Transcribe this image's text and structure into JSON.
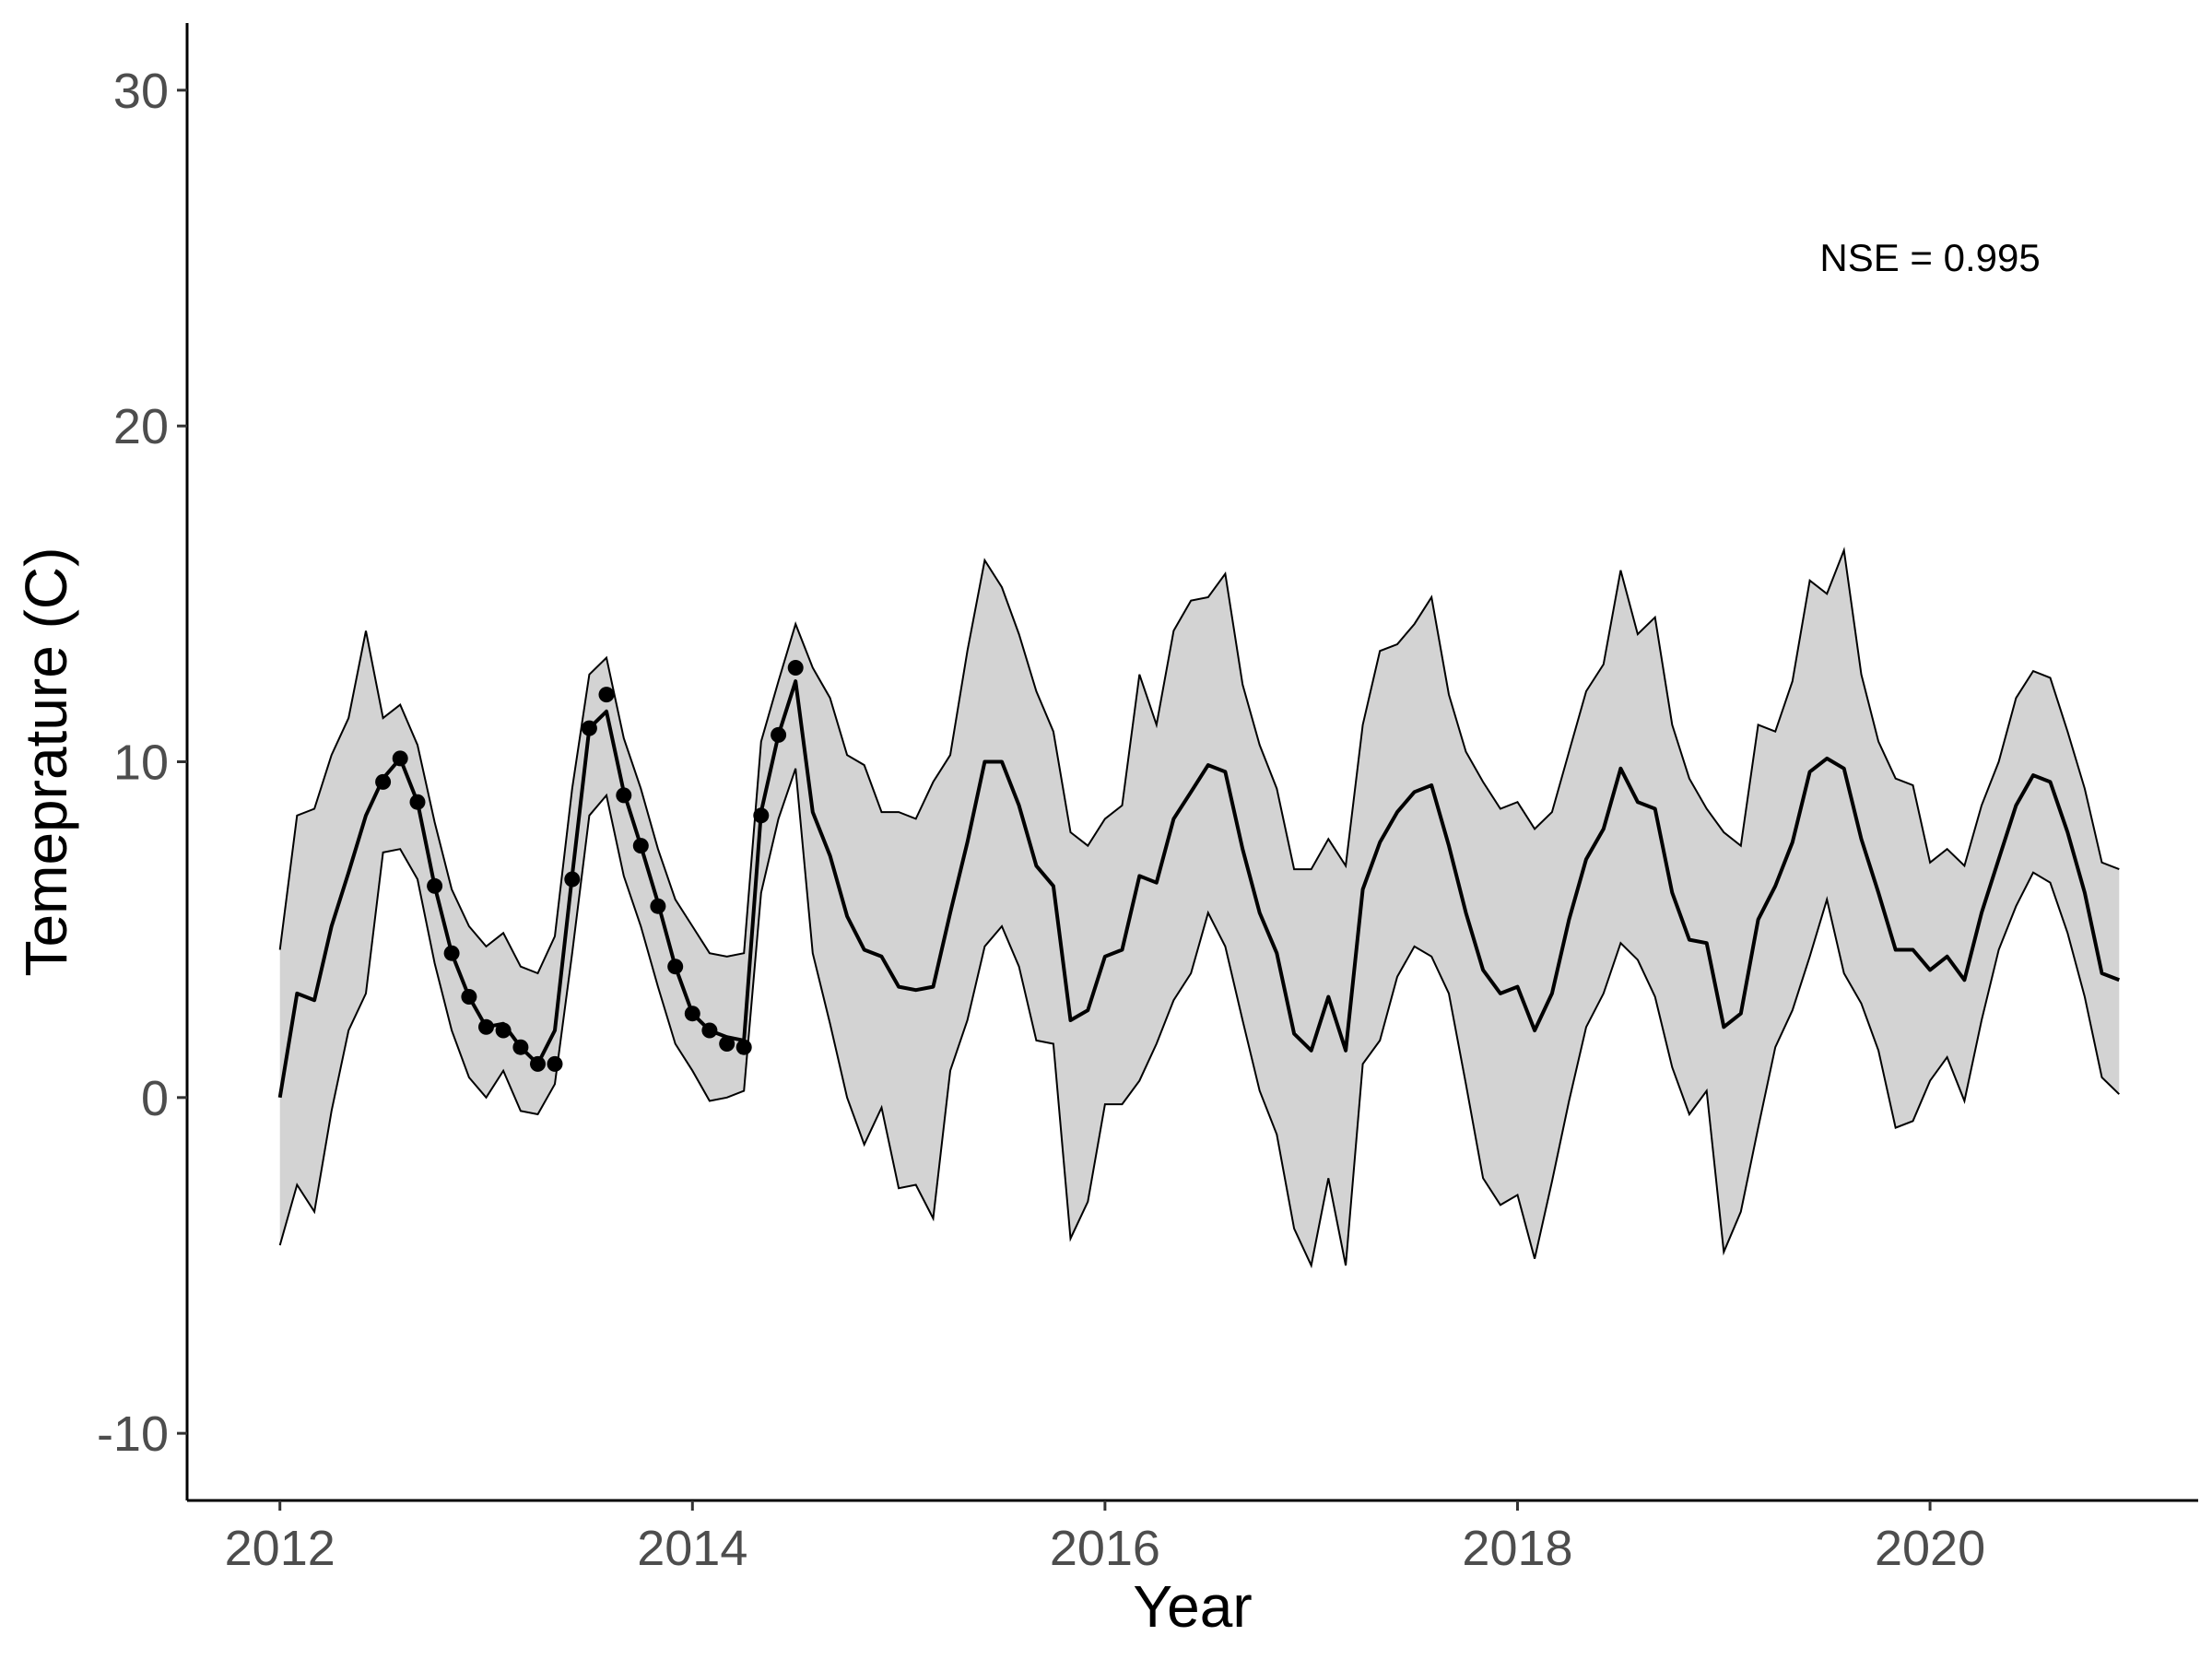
{
  "chart_data": {
    "type": "line",
    "title": "",
    "xlabel": "Year",
    "ylabel": "Temeprature (C)",
    "xlim": [
      2011.55,
      2021.3
    ],
    "ylim": [
      -12,
      32
    ],
    "x_ticks": [
      2012,
      2014,
      2016,
      2018,
      2020
    ],
    "x_tick_labels": [
      "2012",
      "2014",
      "2016",
      "2018",
      "2020"
    ],
    "y_ticks": [
      -10,
      0,
      10,
      20,
      30
    ],
    "y_tick_labels": [
      "-10",
      "0",
      "10",
      "20",
      "30"
    ],
    "grid": false,
    "legend": "none",
    "annotation": {
      "text": "NSE = 0.995",
      "x": 2020.0,
      "y": 25.0
    },
    "colors": {
      "band": "#d3d3d3",
      "line": "#000000",
      "points": "#000000",
      "axis": "#000000"
    },
    "series": [
      {
        "kind": "ribbon",
        "x": [
          2012.0,
          2012.083,
          2012.167,
          2012.25,
          2012.333,
          2012.417,
          2012.5,
          2012.583,
          2012.667,
          2012.75,
          2012.833,
          2012.917,
          2013.0,
          2013.083,
          2013.167,
          2013.25,
          2013.333,
          2013.417,
          2013.5,
          2013.583,
          2013.667,
          2013.75,
          2013.833,
          2013.917,
          2014.0,
          2014.083,
          2014.167,
          2014.25,
          2014.333,
          2014.417,
          2014.5,
          2014.583,
          2014.667,
          2014.75,
          2014.833,
          2014.917,
          2015.0,
          2015.083,
          2015.167,
          2015.25,
          2015.333,
          2015.417,
          2015.5,
          2015.583,
          2015.667,
          2015.75,
          2015.833,
          2015.917,
          2016.0,
          2016.083,
          2016.167,
          2016.25,
          2016.333,
          2016.417,
          2016.5,
          2016.583,
          2016.667,
          2016.75,
          2016.833,
          2016.917,
          2017.0,
          2017.083,
          2017.167,
          2017.25,
          2017.333,
          2017.417,
          2017.5,
          2017.583,
          2017.667,
          2017.75,
          2017.833,
          2017.917,
          2018.0,
          2018.083,
          2018.167,
          2018.25,
          2018.333,
          2018.417,
          2018.5,
          2018.583,
          2018.667,
          2018.75,
          2018.833,
          2018.917,
          2019.0,
          2019.083,
          2019.167,
          2019.25,
          2019.333,
          2019.417,
          2019.5,
          2019.583,
          2019.667,
          2019.75,
          2019.833,
          2019.917,
          2020.0,
          2020.083,
          2020.167,
          2020.25,
          2020.333,
          2020.417,
          2020.5,
          2020.583,
          2020.667,
          2020.75,
          2020.833,
          2020.917
        ],
        "lower": [
          -4.4,
          -2.6,
          -3.4,
          -0.4,
          2.0,
          3.1,
          7.3,
          7.4,
          6.5,
          4.0,
          2.0,
          0.6,
          0.0,
          0.8,
          -0.4,
          -0.5,
          0.4,
          4.3,
          8.4,
          9.0,
          6.6,
          5.1,
          3.3,
          1.6,
          0.8,
          -0.1,
          0.0,
          0.2,
          6.1,
          8.3,
          9.8,
          4.3,
          2.2,
          0.0,
          -1.4,
          -0.3,
          -2.7,
          -2.6,
          -3.6,
          0.8,
          2.3,
          4.5,
          5.1,
          3.9,
          1.7,
          1.6,
          -4.2,
          -3.1,
          -0.2,
          -0.2,
          0.5,
          1.6,
          2.9,
          3.7,
          5.5,
          4.5,
          2.3,
          0.2,
          -1.1,
          -3.9,
          -5.0,
          -2.4,
          -5.0,
          1.0,
          1.7,
          3.6,
          4.5,
          4.2,
          3.1,
          0.4,
          -2.4,
          -3.2,
          -2.9,
          -4.8,
          -2.5,
          -0.1,
          2.1,
          3.1,
          4.6,
          4.1,
          3.0,
          0.9,
          -0.5,
          0.2,
          -4.6,
          -3.4,
          -0.9,
          1.5,
          2.6,
          4.2,
          5.9,
          3.7,
          2.8,
          1.4,
          -0.9,
          -0.7,
          0.5,
          1.2,
          -0.1,
          2.3,
          4.4,
          5.7,
          6.7,
          6.4,
          4.9,
          3.0,
          0.6,
          0.1
        ],
        "upper": [
          4.4,
          8.4,
          8.6,
          10.2,
          11.3,
          13.9,
          11.3,
          11.7,
          10.5,
          8.2,
          6.2,
          5.1,
          4.5,
          4.9,
          3.9,
          3.7,
          4.8,
          9.2,
          12.6,
          13.1,
          10.7,
          9.2,
          7.4,
          5.9,
          5.1,
          4.3,
          4.2,
          4.3,
          10.6,
          12.4,
          14.1,
          12.8,
          11.9,
          10.2,
          9.9,
          8.5,
          8.5,
          8.3,
          9.4,
          10.2,
          13.3,
          16.0,
          15.2,
          13.8,
          12.1,
          10.9,
          7.9,
          7.5,
          8.3,
          8.7,
          12.6,
          11.1,
          13.9,
          14.8,
          14.9,
          15.6,
          12.3,
          10.5,
          9.2,
          6.8,
          6.8,
          7.7,
          6.9,
          11.1,
          13.3,
          13.5,
          14.1,
          14.9,
          12.0,
          10.3,
          9.4,
          8.6,
          8.8,
          8.0,
          8.5,
          10.3,
          12.1,
          12.9,
          15.7,
          13.8,
          14.3,
          11.1,
          9.5,
          8.6,
          7.9,
          7.5,
          11.1,
          10.9,
          12.4,
          15.4,
          15.0,
          16.3,
          12.6,
          10.6,
          9.5,
          9.3,
          7.0,
          7.4,
          6.9,
          8.7,
          10.0,
          11.9,
          12.7,
          12.5,
          10.9,
          9.2,
          7.0,
          6.8
        ]
      },
      {
        "kind": "line",
        "x": [
          2012.0,
          2012.083,
          2012.167,
          2012.25,
          2012.333,
          2012.417,
          2012.5,
          2012.583,
          2012.667,
          2012.75,
          2012.833,
          2012.917,
          2013.0,
          2013.083,
          2013.167,
          2013.25,
          2013.333,
          2013.417,
          2013.5,
          2013.583,
          2013.667,
          2013.75,
          2013.833,
          2013.917,
          2014.0,
          2014.083,
          2014.167,
          2014.25,
          2014.333,
          2014.417,
          2014.5,
          2014.583,
          2014.667,
          2014.75,
          2014.833,
          2014.917,
          2015.0,
          2015.083,
          2015.167,
          2015.25,
          2015.333,
          2015.417,
          2015.5,
          2015.583,
          2015.667,
          2015.75,
          2015.833,
          2015.917,
          2016.0,
          2016.083,
          2016.167,
          2016.25,
          2016.333,
          2016.417,
          2016.5,
          2016.583,
          2016.667,
          2016.75,
          2016.833,
          2016.917,
          2017.0,
          2017.083,
          2017.167,
          2017.25,
          2017.333,
          2017.417,
          2017.5,
          2017.583,
          2017.667,
          2017.75,
          2017.833,
          2017.917,
          2018.0,
          2018.083,
          2018.167,
          2018.25,
          2018.333,
          2018.417,
          2018.5,
          2018.583,
          2018.667,
          2018.75,
          2018.833,
          2018.917,
          2019.0,
          2019.083,
          2019.167,
          2019.25,
          2019.333,
          2019.417,
          2019.5,
          2019.583,
          2019.667,
          2019.75,
          2019.833,
          2019.917,
          2020.0,
          2020.083,
          2020.167,
          2020.25,
          2020.333,
          2020.417,
          2020.5,
          2020.583,
          2020.667,
          2020.75,
          2020.833,
          2020.917
        ],
        "y": [
          0.0,
          3.1,
          2.9,
          5.1,
          6.7,
          8.4,
          9.5,
          10.1,
          8.8,
          6.3,
          4.3,
          3.0,
          2.1,
          2.2,
          1.5,
          1.0,
          2.0,
          6.6,
          11.0,
          11.5,
          9.1,
          7.5,
          5.8,
          3.9,
          2.5,
          2.0,
          1.8,
          1.7,
          8.5,
          10.8,
          12.4,
          8.5,
          7.2,
          5.4,
          4.4,
          4.2,
          3.3,
          3.2,
          3.3,
          5.5,
          7.6,
          10.0,
          10.0,
          8.7,
          6.9,
          6.3,
          2.3,
          2.6,
          4.2,
          4.4,
          6.6,
          6.4,
          8.3,
          9.1,
          9.9,
          9.7,
          7.4,
          5.5,
          4.3,
          1.9,
          1.4,
          3.0,
          1.4,
          6.2,
          7.6,
          8.5,
          9.1,
          9.3,
          7.5,
          5.5,
          3.8,
          3.1,
          3.3,
          2.0,
          3.1,
          5.3,
          7.1,
          8.0,
          9.8,
          8.8,
          8.6,
          6.1,
          4.7,
          4.6,
          2.1,
          2.5,
          5.3,
          6.3,
          7.6,
          9.7,
          10.1,
          9.8,
          7.7,
          6.1,
          4.4,
          4.4,
          3.8,
          4.2,
          3.5,
          5.5,
          7.1,
          8.7,
          9.6,
          9.4,
          7.9,
          6.1,
          3.7,
          3.5
        ]
      },
      {
        "kind": "points",
        "x": [
          2012.5,
          2012.583,
          2012.667,
          2012.75,
          2012.833,
          2012.917,
          2013.0,
          2013.083,
          2013.167,
          2013.25,
          2013.333,
          2013.417,
          2013.5,
          2013.583,
          2013.667,
          2013.75,
          2013.833,
          2013.917,
          2014.0,
          2014.083,
          2014.167,
          2014.25,
          2014.333,
          2014.417,
          2014.5
        ],
        "y": [
          9.4,
          10.1,
          8.8,
          6.3,
          4.3,
          3.0,
          2.1,
          2.0,
          1.5,
          1.0,
          1.0,
          6.5,
          11.0,
          12.0,
          9.0,
          7.5,
          5.7,
          3.9,
          2.5,
          2.0,
          1.6,
          1.5,
          8.4,
          10.8,
          12.8
        ]
      }
    ]
  }
}
